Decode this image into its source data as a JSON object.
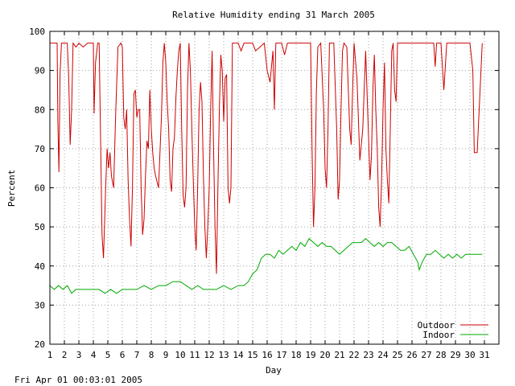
{
  "chart_data": {
    "type": "line",
    "title": "Relative Humidity ending 31 March 2005",
    "xlabel": "Day",
    "ylabel": "Percent",
    "xlim": [
      1,
      32
    ],
    "ylim": [
      20,
      100
    ],
    "x_ticks": [
      "1",
      "2",
      "3",
      "4",
      "5",
      "6",
      "7",
      "8",
      "9",
      "10",
      "11",
      "12",
      "13",
      "14",
      "15",
      "16",
      "17",
      "18",
      "19",
      "20",
      "21",
      "22",
      "23",
      "24",
      "25",
      "26",
      "27",
      "28",
      "29",
      "30",
      "31"
    ],
    "y_ticks": [
      20,
      30,
      40,
      50,
      60,
      70,
      80,
      90,
      100
    ],
    "grid": true,
    "legend_position": "bottom-right",
    "series": [
      {
        "name": "Outdoor",
        "color": "#cc0000",
        "points": [
          [
            1.0,
            97
          ],
          [
            1.5,
            97
          ],
          [
            1.55,
            77
          ],
          [
            1.62,
            64
          ],
          [
            1.7,
            89
          ],
          [
            1.8,
            97
          ],
          [
            2.2,
            97
          ],
          [
            2.3,
            88
          ],
          [
            2.4,
            71
          ],
          [
            2.5,
            80
          ],
          [
            2.6,
            97
          ],
          [
            2.8,
            96
          ],
          [
            3.0,
            97
          ],
          [
            3.3,
            96
          ],
          [
            3.6,
            97
          ],
          [
            4.0,
            97
          ],
          [
            4.05,
            79
          ],
          [
            4.15,
            92
          ],
          [
            4.3,
            97
          ],
          [
            4.4,
            97
          ],
          [
            4.6,
            48
          ],
          [
            4.7,
            42
          ],
          [
            4.85,
            60
          ],
          [
            4.95,
            70
          ],
          [
            5.05,
            65
          ],
          [
            5.15,
            69
          ],
          [
            5.25,
            63
          ],
          [
            5.4,
            60
          ],
          [
            5.55,
            80
          ],
          [
            5.7,
            96
          ],
          [
            5.9,
            97
          ],
          [
            6.0,
            96
          ],
          [
            6.1,
            78
          ],
          [
            6.2,
            75
          ],
          [
            6.3,
            80
          ],
          [
            6.4,
            62
          ],
          [
            6.5,
            52
          ],
          [
            6.6,
            45
          ],
          [
            6.7,
            60
          ],
          [
            6.8,
            84
          ],
          [
            6.9,
            85
          ],
          [
            7.0,
            78
          ],
          [
            7.1,
            80
          ],
          [
            7.2,
            80
          ],
          [
            7.3,
            60
          ],
          [
            7.4,
            48
          ],
          [
            7.5,
            52
          ],
          [
            7.6,
            63
          ],
          [
            7.7,
            72
          ],
          [
            7.8,
            70
          ],
          [
            7.9,
            85
          ],
          [
            8.0,
            75
          ],
          [
            8.1,
            69
          ],
          [
            8.2,
            65
          ],
          [
            8.3,
            63
          ],
          [
            8.5,
            60
          ],
          [
            8.7,
            78
          ],
          [
            8.8,
            92
          ],
          [
            8.9,
            97
          ],
          [
            9.0,
            92
          ],
          [
            9.1,
            82
          ],
          [
            9.2,
            75
          ],
          [
            9.3,
            62
          ],
          [
            9.4,
            59
          ],
          [
            9.5,
            70
          ],
          [
            9.6,
            73
          ],
          [
            9.7,
            83
          ],
          [
            9.8,
            90
          ],
          [
            9.9,
            95
          ],
          [
            10.0,
            97
          ],
          [
            10.1,
            75
          ],
          [
            10.2,
            58
          ],
          [
            10.3,
            55
          ],
          [
            10.4,
            60
          ],
          [
            10.5,
            85
          ],
          [
            10.6,
            97
          ],
          [
            10.7,
            90
          ],
          [
            10.8,
            75
          ],
          [
            10.9,
            62
          ],
          [
            11.0,
            50
          ],
          [
            11.1,
            44
          ],
          [
            11.2,
            60
          ],
          [
            11.3,
            80
          ],
          [
            11.4,
            87
          ],
          [
            11.5,
            82
          ],
          [
            11.6,
            63
          ],
          [
            11.7,
            50
          ],
          [
            11.8,
            42
          ],
          [
            11.9,
            50
          ],
          [
            12.0,
            60
          ],
          [
            12.1,
            80
          ],
          [
            12.2,
            95
          ],
          [
            12.3,
            70
          ],
          [
            12.4,
            50
          ],
          [
            12.5,
            38
          ],
          [
            12.6,
            60
          ],
          [
            12.7,
            80
          ],
          [
            12.8,
            94
          ],
          [
            12.9,
            90
          ],
          [
            13.0,
            77
          ],
          [
            13.1,
            88
          ],
          [
            13.2,
            89
          ],
          [
            13.3,
            60
          ],
          [
            13.4,
            56
          ],
          [
            13.5,
            60
          ],
          [
            13.6,
            97
          ],
          [
            14.0,
            97
          ],
          [
            14.2,
            95
          ],
          [
            14.4,
            97
          ],
          [
            15.0,
            97
          ],
          [
            15.2,
            95
          ],
          [
            15.5,
            96
          ],
          [
            15.8,
            97
          ],
          [
            16.0,
            90
          ],
          [
            16.2,
            87
          ],
          [
            16.4,
            95
          ],
          [
            16.5,
            80
          ],
          [
            16.6,
            97
          ],
          [
            17.0,
            97
          ],
          [
            17.2,
            94
          ],
          [
            17.4,
            97
          ],
          [
            18.0,
            97
          ],
          [
            18.5,
            97
          ],
          [
            19.0,
            97
          ],
          [
            19.1,
            70
          ],
          [
            19.2,
            50
          ],
          [
            19.3,
            60
          ],
          [
            19.4,
            85
          ],
          [
            19.5,
            96
          ],
          [
            19.7,
            97
          ],
          [
            19.9,
            80
          ],
          [
            20.0,
            65
          ],
          [
            20.1,
            60
          ],
          [
            20.2,
            75
          ],
          [
            20.3,
            97
          ],
          [
            20.6,
            97
          ],
          [
            20.8,
            75
          ],
          [
            20.9,
            57
          ],
          [
            21.0,
            62
          ],
          [
            21.1,
            80
          ],
          [
            21.2,
            95
          ],
          [
            21.3,
            97
          ],
          [
            21.5,
            96
          ],
          [
            21.7,
            75
          ],
          [
            21.8,
            71
          ],
          [
            21.9,
            85
          ],
          [
            22.0,
            97
          ],
          [
            22.2,
            88
          ],
          [
            22.4,
            67
          ],
          [
            22.6,
            75
          ],
          [
            22.8,
            95
          ],
          [
            23.0,
            73
          ],
          [
            23.1,
            62
          ],
          [
            23.2,
            68
          ],
          [
            23.3,
            85
          ],
          [
            23.4,
            94
          ],
          [
            23.5,
            80
          ],
          [
            23.6,
            70
          ],
          [
            23.7,
            55
          ],
          [
            23.8,
            50
          ],
          [
            23.9,
            62
          ],
          [
            24.0,
            80
          ],
          [
            24.1,
            92
          ],
          [
            24.2,
            70
          ],
          [
            24.3,
            62
          ],
          [
            24.4,
            56
          ],
          [
            24.5,
            75
          ],
          [
            24.6,
            95
          ],
          [
            24.7,
            97
          ],
          [
            24.8,
            85
          ],
          [
            24.9,
            82
          ],
          [
            25.0,
            97
          ],
          [
            25.5,
            97
          ],
          [
            26.0,
            97
          ],
          [
            26.5,
            97
          ],
          [
            27.0,
            97
          ],
          [
            27.5,
            97
          ],
          [
            27.6,
            91
          ],
          [
            27.7,
            97
          ],
          [
            28.0,
            97
          ],
          [
            28.2,
            85
          ],
          [
            28.4,
            97
          ],
          [
            29.0,
            97
          ],
          [
            29.5,
            97
          ],
          [
            30.0,
            97
          ],
          [
            30.2,
            90
          ],
          [
            30.3,
            69
          ],
          [
            30.5,
            69
          ],
          [
            30.7,
            85
          ],
          [
            30.85,
            97
          ]
        ]
      },
      {
        "name": "Indoor",
        "color": "#00aa00",
        "points": [
          [
            1.0,
            35
          ],
          [
            1.3,
            34
          ],
          [
            1.6,
            35
          ],
          [
            1.9,
            34
          ],
          [
            2.2,
            35
          ],
          [
            2.5,
            33
          ],
          [
            2.8,
            34
          ],
          [
            3.2,
            34
          ],
          [
            3.6,
            34
          ],
          [
            4.0,
            34
          ],
          [
            4.4,
            34
          ],
          [
            4.8,
            33
          ],
          [
            5.2,
            34
          ],
          [
            5.6,
            33
          ],
          [
            6.0,
            34
          ],
          [
            6.5,
            34
          ],
          [
            7.0,
            34
          ],
          [
            7.5,
            35
          ],
          [
            8.0,
            34
          ],
          [
            8.5,
            35
          ],
          [
            9.0,
            35
          ],
          [
            9.5,
            36
          ],
          [
            10.0,
            36
          ],
          [
            10.4,
            35
          ],
          [
            10.8,
            34
          ],
          [
            11.2,
            35
          ],
          [
            11.6,
            34
          ],
          [
            12.0,
            34
          ],
          [
            12.5,
            34
          ],
          [
            13.0,
            35
          ],
          [
            13.5,
            34
          ],
          [
            14.0,
            35
          ],
          [
            14.4,
            35
          ],
          [
            14.7,
            36
          ],
          [
            15.0,
            38
          ],
          [
            15.3,
            39
          ],
          [
            15.6,
            42
          ],
          [
            15.9,
            43
          ],
          [
            16.2,
            43
          ],
          [
            16.5,
            42
          ],
          [
            16.8,
            44
          ],
          [
            17.1,
            43
          ],
          [
            17.4,
            44
          ],
          [
            17.7,
            45
          ],
          [
            18.0,
            44
          ],
          [
            18.3,
            46
          ],
          [
            18.6,
            45
          ],
          [
            18.9,
            47
          ],
          [
            19.2,
            46
          ],
          [
            19.5,
            45
          ],
          [
            19.8,
            46
          ],
          [
            20.1,
            45
          ],
          [
            20.4,
            45
          ],
          [
            20.7,
            44
          ],
          [
            21.0,
            43
          ],
          [
            21.3,
            44
          ],
          [
            21.6,
            45
          ],
          [
            21.9,
            46
          ],
          [
            22.2,
            46
          ],
          [
            22.5,
            46
          ],
          [
            22.8,
            47
          ],
          [
            23.1,
            46
          ],
          [
            23.4,
            45
          ],
          [
            23.7,
            46
          ],
          [
            24.0,
            45
          ],
          [
            24.3,
            46
          ],
          [
            24.6,
            46
          ],
          [
            24.9,
            45
          ],
          [
            25.2,
            44
          ],
          [
            25.5,
            44
          ],
          [
            25.8,
            45
          ],
          [
            26.1,
            43
          ],
          [
            26.4,
            41
          ],
          [
            26.5,
            39
          ],
          [
            26.7,
            41
          ],
          [
            27.0,
            43
          ],
          [
            27.3,
            43
          ],
          [
            27.6,
            44
          ],
          [
            27.9,
            43
          ],
          [
            28.2,
            42
          ],
          [
            28.5,
            43
          ],
          [
            28.8,
            42
          ],
          [
            29.1,
            43
          ],
          [
            29.4,
            42
          ],
          [
            29.7,
            43
          ],
          [
            30.0,
            43
          ],
          [
            30.4,
            43
          ],
          [
            30.85,
            43
          ]
        ]
      }
    ]
  },
  "footer": {
    "timestamp": "Fri Apr 01 00:03:01 2005"
  }
}
